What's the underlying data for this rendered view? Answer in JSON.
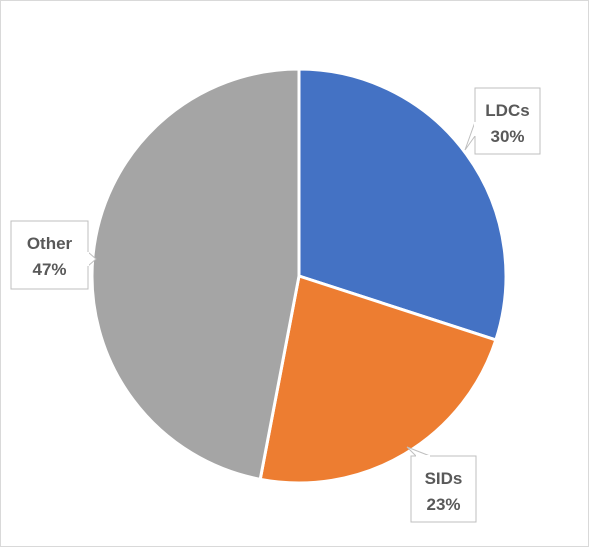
{
  "chart_data": {
    "type": "pie",
    "title": "",
    "slices": [
      {
        "name": "LDCs",
        "label": "LDCs",
        "pct_label": "30%",
        "value": 30,
        "color": "#4472c4"
      },
      {
        "name": "SIDs",
        "label": "SIDs",
        "pct_label": "23%",
        "value": 23,
        "color": "#ed7d31"
      },
      {
        "name": "Other",
        "label": "Other",
        "pct_label": "47%",
        "value": 47,
        "color": "#a5a5a5"
      }
    ],
    "start_angle_deg": 0,
    "direction": "clockwise",
    "legend": "none",
    "data_labels": "callouts"
  }
}
